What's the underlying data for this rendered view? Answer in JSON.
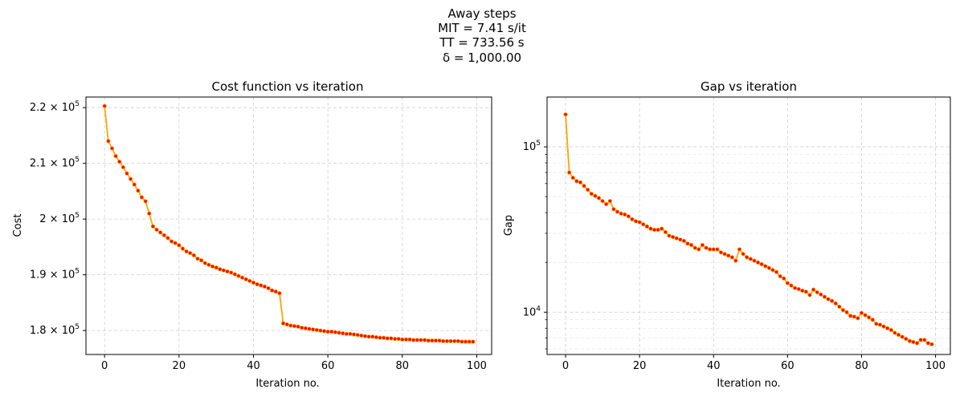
{
  "figure": {
    "suptitle_lines": [
      "Away steps",
      "MIT = 7.41 s/it",
      "TT = 733.56 s",
      "δ = 1,000.00"
    ]
  },
  "chart_data": [
    {
      "type": "line",
      "title": "Cost function vs iteration",
      "xlabel": "Iteration no.",
      "ylabel": "Cost",
      "xlim": [
        -5,
        104
      ],
      "ylim": [
        175700,
        221900
      ],
      "yscale": "linear",
      "grid": true,
      "xticks": [
        0,
        20,
        40,
        60,
        80,
        100
      ],
      "yticks": [
        {
          "value": 180000,
          "mant": "1.8",
          "exp": "5"
        },
        {
          "value": 190000,
          "mant": "1.9",
          "exp": "5"
        },
        {
          "value": 200000,
          "mant": "2",
          "exp": "5"
        },
        {
          "value": 210000,
          "mant": "2.1",
          "exp": "5"
        },
        {
          "value": 220000,
          "mant": "2.2",
          "exp": "5"
        }
      ],
      "series": [
        {
          "line_color": "#ffa500",
          "marker_color": "#ff0000",
          "x": [
            0,
            1,
            2,
            3,
            4,
            5,
            6,
            7,
            8,
            9,
            10,
            11,
            12,
            13,
            14,
            15,
            16,
            17,
            18,
            19,
            20,
            21,
            22,
            23,
            24,
            25,
            26,
            27,
            28,
            29,
            30,
            31,
            32,
            33,
            34,
            35,
            36,
            37,
            38,
            39,
            40,
            41,
            42,
            43,
            44,
            45,
            46,
            47,
            48,
            49,
            50,
            51,
            52,
            53,
            54,
            55,
            56,
            57,
            58,
            59,
            60,
            61,
            62,
            63,
            64,
            65,
            66,
            67,
            68,
            69,
            70,
            71,
            72,
            73,
            74,
            75,
            76,
            77,
            78,
            79,
            80,
            81,
            82,
            83,
            84,
            85,
            86,
            87,
            88,
            89,
            90,
            91,
            92,
            93,
            94,
            95,
            96,
            97,
            98,
            99
          ],
          "values": [
            220300,
            214000,
            212700,
            211300,
            210300,
            209300,
            208200,
            207200,
            206200,
            205100,
            203900,
            203200,
            201000,
            198700,
            198100,
            197600,
            197100,
            196600,
            196000,
            195700,
            195300,
            194700,
            194200,
            193900,
            193500,
            192900,
            192600,
            192100,
            191800,
            191500,
            191300,
            191000,
            190800,
            190600,
            190400,
            190100,
            189800,
            189500,
            189200,
            188900,
            188600,
            188300,
            188100,
            187900,
            187600,
            187200,
            187000,
            186700,
            181300,
            181100,
            180900,
            180800,
            180700,
            180500,
            180400,
            180300,
            180200,
            180100,
            180000,
            179900,
            179800,
            179800,
            179700,
            179600,
            179500,
            179400,
            179400,
            179300,
            179200,
            179100,
            179000,
            178900,
            178900,
            178800,
            178700,
            178700,
            178600,
            178600,
            178500,
            178500,
            178400,
            178400,
            178400,
            178300,
            178300,
            178300,
            178300,
            178200,
            178200,
            178200,
            178200,
            178100,
            178100,
            178100,
            178100,
            178100,
            178000,
            178000,
            178000,
            178000
          ]
        }
      ]
    },
    {
      "type": "line",
      "title": "Gap vs iteration",
      "xlabel": "Iteration no.",
      "ylabel": "Gap",
      "xlim": [
        -5,
        104
      ],
      "ylim": [
        5550,
        200000
      ],
      "yscale": "log",
      "grid": true,
      "xticks": [
        0,
        20,
        40,
        60,
        80,
        100
      ],
      "yticks": [
        {
          "value": 10000,
          "mant": "10",
          "exp": "4"
        },
        {
          "value": 100000,
          "mant": "10",
          "exp": "5"
        }
      ],
      "series": [
        {
          "line_color": "#ffa500",
          "marker_color": "#ff0000",
          "x": [
            0,
            1,
            2,
            3,
            4,
            5,
            6,
            7,
            8,
            9,
            10,
            11,
            12,
            13,
            14,
            15,
            16,
            17,
            18,
            19,
            20,
            21,
            22,
            23,
            24,
            25,
            26,
            27,
            28,
            29,
            30,
            31,
            32,
            33,
            34,
            35,
            36,
            37,
            38,
            39,
            40,
            41,
            42,
            43,
            44,
            45,
            46,
            47,
            48,
            49,
            50,
            51,
            52,
            53,
            54,
            55,
            56,
            57,
            58,
            59,
            60,
            61,
            62,
            63,
            64,
            65,
            66,
            67,
            68,
            69,
            70,
            71,
            72,
            73,
            74,
            75,
            76,
            77,
            78,
            79,
            80,
            81,
            82,
            83,
            84,
            85,
            86,
            87,
            88,
            89,
            90,
            91,
            92,
            93,
            94,
            95,
            96,
            97,
            98,
            99
          ],
          "values": [
            157000,
            70000,
            65000,
            62000,
            61000,
            58000,
            55000,
            52000,
            50500,
            49000,
            47000,
            45000,
            47000,
            42000,
            40500,
            39500,
            39000,
            38000,
            36500,
            35500,
            35000,
            34000,
            33000,
            32000,
            31500,
            31500,
            32000,
            30500,
            29000,
            28500,
            28000,
            27500,
            27000,
            26000,
            25500,
            24500,
            24000,
            25500,
            24500,
            24000,
            24000,
            24000,
            23000,
            22500,
            22000,
            21500,
            20500,
            24000,
            22500,
            21500,
            21000,
            20500,
            20000,
            19500,
            19000,
            18500,
            18000,
            17500,
            16500,
            16000,
            15000,
            14500,
            14000,
            13800,
            13500,
            13300,
            12700,
            13700,
            13200,
            12800,
            12400,
            12000,
            11700,
            11300,
            10800,
            10300,
            10000,
            9500,
            9400,
            9200,
            9900,
            9600,
            9300,
            9000,
            8500,
            8400,
            8200,
            8000,
            7800,
            7500,
            7300,
            7100,
            6900,
            6700,
            6600,
            6500,
            6800,
            6800,
            6500,
            6400
          ]
        }
      ]
    }
  ]
}
